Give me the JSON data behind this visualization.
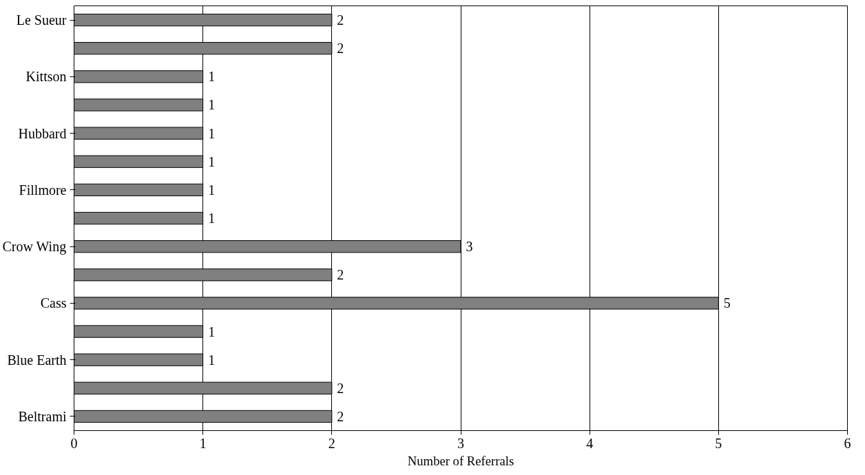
{
  "chart_data": {
    "type": "bar",
    "orientation": "horizontal",
    "categories": [
      "Le Sueur",
      null,
      "Kittson",
      null,
      "Hubbard",
      null,
      "Fillmore",
      null,
      "Crow Wing",
      null,
      "Cass",
      null,
      "Blue Earth",
      null,
      "Beltrami"
    ],
    "values": [
      2,
      2,
      1,
      1,
      1,
      1,
      1,
      1,
      3,
      2,
      5,
      1,
      1,
      2,
      2
    ],
    "color": "#808080",
    "xlim": [
      0,
      6
    ],
    "xticks": [
      0,
      1,
      2,
      3,
      4,
      5,
      6
    ],
    "grid": "x",
    "data_labels": true,
    "xlabel": "Number of Referrals"
  }
}
